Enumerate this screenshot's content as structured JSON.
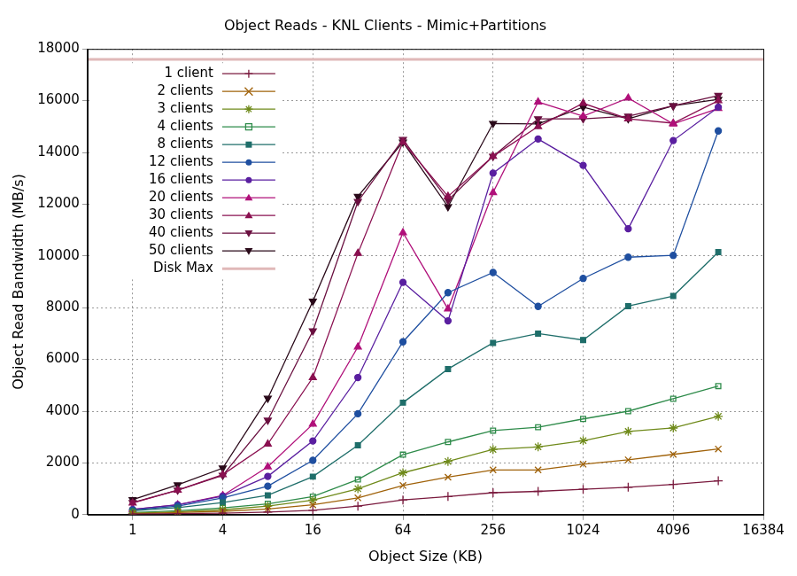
{
  "chart_data": {
    "type": "line",
    "title": "Object Reads - KNL Clients - Mimic+Partitions",
    "x_label": "Object Size (KB)",
    "y_label": "Object Read Bandwidth (MB/s)",
    "log": "x",
    "grid": true,
    "legend": "top-left",
    "xlim": [
      0.5,
      16384
    ],
    "xticks": [
      1,
      4,
      16,
      64,
      256,
      1024,
      4096,
      16384
    ],
    "ylim": [
      0,
      18000
    ],
    "yticks": [
      0,
      2000,
      4000,
      6000,
      8000,
      10000,
      12000,
      14000,
      16000,
      18000
    ],
    "x": [
      1,
      2,
      4,
      8,
      16,
      32,
      64,
      128,
      256,
      512,
      1024,
      2048,
      4096,
      8192
    ],
    "series": [
      {
        "name": "1 client",
        "color": "#7a1a3e",
        "marker": "plus",
        "values": [
          20,
          40,
          60,
          100,
          170,
          330,
          570,
          700,
          850,
          900,
          980,
          1060,
          1170,
          1310
        ]
      },
      {
        "name": "2 clients",
        "color": "#a0620a",
        "marker": "x",
        "values": [
          40,
          80,
          130,
          220,
          380,
          650,
          1130,
          1450,
          1730,
          1730,
          1950,
          2120,
          2330,
          2540
        ]
      },
      {
        "name": "3 clients",
        "color": "#6f8a1a",
        "marker": "star",
        "values": [
          60,
          110,
          190,
          330,
          560,
          1000,
          1620,
          2060,
          2520,
          2620,
          2860,
          3220,
          3350,
          3800
        ]
      },
      {
        "name": "4 clients",
        "color": "#2e8b4a",
        "marker": "square_open",
        "values": [
          80,
          150,
          260,
          420,
          700,
          1360,
          2320,
          2810,
          3250,
          3380,
          3700,
          4000,
          4480,
          4970
        ]
      },
      {
        "name": "8 clients",
        "color": "#1f6e6a",
        "marker": "square",
        "values": [
          150,
          270,
          470,
          750,
          1470,
          2680,
          4330,
          5630,
          6640,
          7000,
          6750,
          8060,
          8450,
          10150
        ]
      },
      {
        "name": "12 clients",
        "color": "#1f4fa0",
        "marker": "circle",
        "values": [
          180,
          330,
          650,
          1100,
          2100,
          3900,
          6680,
          8580,
          9360,
          8050,
          9130,
          9950,
          10020,
          14830
        ]
      },
      {
        "name": "16 clients",
        "color": "#5a1fa0",
        "marker": "circle",
        "values": [
          200,
          380,
          720,
          1480,
          2850,
          5300,
          8980,
          7490,
          13200,
          14520,
          13500,
          11050,
          14460,
          15750
        ]
      },
      {
        "name": "20 clients",
        "color": "#b0107a",
        "marker": "triangle",
        "values": [
          200,
          380,
          740,
          1850,
          3500,
          6480,
          10900,
          7950,
          12450,
          15950,
          15400,
          16100,
          15100,
          15700
        ]
      },
      {
        "name": "30 clients",
        "color": "#8a1050",
        "marker": "triangle",
        "values": [
          450,
          950,
          1550,
          2730,
          5300,
          10100,
          14400,
          12300,
          13850,
          15000,
          15900,
          15300,
          15130,
          16000
        ]
      },
      {
        "name": "40 clients",
        "color": "#6a1040",
        "marker": "triangle_down",
        "values": [
          470,
          950,
          1520,
          3650,
          7100,
          12100,
          14500,
          12150,
          13850,
          15300,
          15300,
          15400,
          15800,
          16200
        ]
      },
      {
        "name": "50 clients",
        "color": "#2a0a1a",
        "marker": "triangle_down",
        "values": [
          580,
          1150,
          1800,
          4500,
          8250,
          12300,
          14400,
          11900,
          15120,
          15100,
          15750,
          15300,
          15800,
          16050
        ]
      },
      {
        "name": "Disk Max",
        "color": "#e0b8b8",
        "marker": "none",
        "x": [
          0.5,
          16384
        ],
        "values": [
          17600,
          17600
        ]
      }
    ]
  }
}
